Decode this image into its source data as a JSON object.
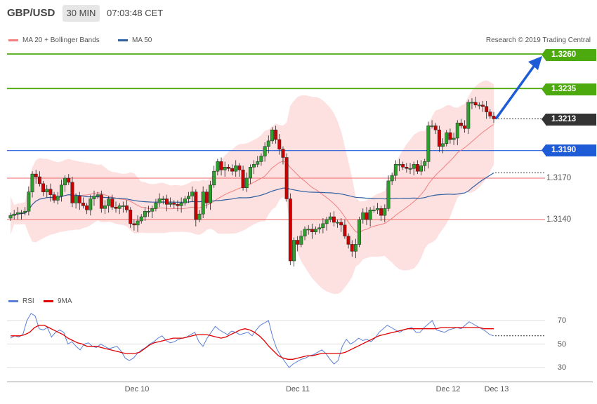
{
  "header": {
    "pair": "GBP/USD",
    "timeframe": "30 MIN",
    "time": "07:03:48 CET"
  },
  "legend": {
    "ma20_label": "MA 20 + Bollinger Bands",
    "ma50_label": "MA 50",
    "ma20_color": "#f08080",
    "ma50_color": "#2f5f9f",
    "credit": "Research © 2019 Trading Central"
  },
  "levels": {
    "target2": "1.3260",
    "target1": "1.3235",
    "current": "1.3213",
    "pivot": "1.3190",
    "support1": "1.3170",
    "support2": "1.3140"
  },
  "colors": {
    "green": "#4caa0e",
    "blue": "#1e5bd6",
    "dark": "#333333",
    "red": "#ee6666",
    "candle_fill": "#2ca02c",
    "candle_down": "#cc0000",
    "band": "#fde0e0"
  },
  "rsi_legend": {
    "rsi_label": "RSI",
    "ma_label": "9MA",
    "rsi_color": "#5b7fd6",
    "ma_color": "#e00000"
  },
  "x_labels": [
    "Dec 10",
    "Dec 11",
    "Dec 12",
    "Dec 13"
  ],
  "rsi_levels": [
    "70",
    "50",
    "30"
  ],
  "chart_data": [
    {
      "type": "candlestick",
      "title": "GBP/USD 30 MIN",
      "x_labels": [
        "Dec 10",
        "Dec 11",
        "Dec 12",
        "Dec 13"
      ],
      "ylim": [
        1.31,
        1.327
      ],
      "levels": [
        1.326,
        1.3235,
        1.3213,
        1.319,
        1.317,
        1.314
      ],
      "close_path": [
        1.3143,
        1.3144,
        1.3145,
        1.3145,
        1.3146,
        1.316,
        1.3173,
        1.3171,
        1.3166,
        1.316,
        1.3162,
        1.3158,
        1.3154,
        1.3157,
        1.3165,
        1.317,
        1.3167,
        1.3152,
        1.3157,
        1.3152,
        1.315,
        1.3147,
        1.3155,
        1.3157,
        1.3158,
        1.3148,
        1.315,
        1.3155,
        1.3149,
        1.3148,
        1.315,
        1.315,
        1.3147,
        1.3137,
        1.3136,
        1.3139,
        1.3142,
        1.3146,
        1.3146,
        1.3148,
        1.3152,
        1.3155,
        1.3155,
        1.3151,
        1.3152,
        1.3151,
        1.315,
        1.3152,
        1.3155,
        1.3157,
        1.316,
        1.314,
        1.3144,
        1.316,
        1.3152,
        1.3165,
        1.3175,
        1.3182,
        1.3176,
        1.3178,
        1.3177,
        1.3175,
        1.3179,
        1.3176,
        1.3163,
        1.317,
        1.3178,
        1.318,
        1.3182,
        1.3186,
        1.3193,
        1.3197,
        1.3205,
        1.3198,
        1.3191,
        1.3185,
        1.3155,
        1.311,
        1.3125,
        1.3122,
        1.3128,
        1.3133,
        1.3133,
        1.3131,
        1.3133,
        1.3134,
        1.3137,
        1.314,
        1.3142,
        1.3138,
        1.3138,
        1.3136,
        1.3128,
        1.3122,
        1.3117,
        1.3122,
        1.314,
        1.3145,
        1.314,
        1.3147,
        1.3147,
        1.3148,
        1.3143,
        1.3148,
        1.3168,
        1.3172,
        1.318,
        1.318,
        1.3178,
        1.3177,
        1.3177,
        1.318,
        1.3175,
        1.3179,
        1.3182,
        1.3208,
        1.3208,
        1.3205,
        1.3193,
        1.3195,
        1.3203,
        1.3198,
        1.3199,
        1.321,
        1.3208,
        1.3206,
        1.3225,
        1.3225,
        1.3223,
        1.3223,
        1.3222,
        1.3218,
        1.3215,
        1.3213
      ]
    },
    {
      "type": "line",
      "title": "RSI",
      "ylim": [
        20,
        85
      ],
      "series": [
        {
          "name": "RSI",
          "values": [
            55,
            57,
            56,
            58,
            70,
            76,
            74,
            63,
            62,
            64,
            56,
            60,
            62,
            60,
            50,
            52,
            48,
            45,
            50,
            51,
            48,
            47,
            50,
            48,
            46,
            47,
            48,
            44,
            38,
            36,
            38,
            42,
            45,
            47,
            50,
            52,
            55,
            57,
            53,
            51,
            52,
            54,
            55,
            56,
            58,
            60,
            52,
            48,
            55,
            60,
            65,
            62,
            60,
            58,
            61,
            60,
            58,
            59,
            60,
            57,
            62,
            66,
            68,
            70,
            56,
            46,
            40,
            35,
            30,
            33,
            35,
            37,
            38,
            40,
            41,
            43,
            45,
            42,
            37,
            33,
            36,
            48,
            54,
            50,
            52,
            55,
            53,
            54,
            52,
            55,
            60,
            63,
            66,
            64,
            62,
            60,
            62,
            63,
            64,
            60,
            60,
            64,
            67,
            70,
            62,
            61,
            60,
            62,
            63,
            64,
            63,
            66,
            69,
            67,
            65,
            63,
            61,
            58,
            57
          ]
        },
        {
          "name": "9MA",
          "values": [
            57,
            57,
            57,
            58,
            60,
            64,
            66,
            66,
            64,
            62,
            60,
            58,
            55,
            53,
            51,
            50,
            48,
            48,
            48,
            47,
            46,
            45,
            44,
            43,
            42,
            42,
            42,
            43,
            46,
            49,
            51,
            52,
            53,
            54,
            55,
            55,
            55,
            56,
            57,
            58,
            58,
            58,
            57,
            56,
            55,
            56,
            58,
            60,
            62,
            63,
            62,
            60,
            57,
            53,
            48,
            44,
            40,
            38,
            37,
            37,
            38,
            39,
            40,
            40,
            41,
            42,
            42,
            42,
            42,
            42,
            43,
            45,
            47,
            49,
            51,
            53,
            55,
            57,
            58,
            59,
            60,
            61,
            62,
            63,
            63,
            63,
            63,
            63,
            63,
            63,
            64,
            64,
            64,
            64,
            64,
            64,
            64,
            64,
            64,
            63,
            63,
            63
          ]
        }
      ],
      "reference_lines": [
        70,
        50,
        30
      ]
    }
  ]
}
